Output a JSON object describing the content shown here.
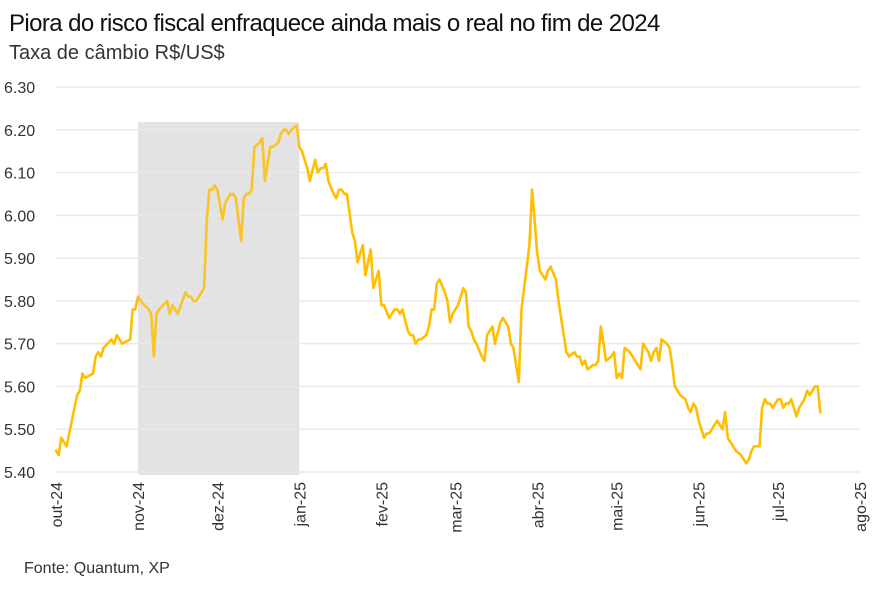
{
  "title": "Piora do risco fiscal enfraquece ainda mais o real no fim de 2024",
  "subtitle": "Taxa de câmbio R$/US$",
  "source": "Fonte: Quantum, XP",
  "chart_data": {
    "type": "line",
    "title": "Piora do risco fiscal enfraquece ainda mais o real no fim de 2024",
    "subtitle": "Taxa de câmbio R$/US$",
    "xlabel": "",
    "ylabel": "",
    "ylim": [
      5.4,
      6.3
    ],
    "yticks": [
      "6.30",
      "6.20",
      "6.10",
      "6.00",
      "5.90",
      "5.80",
      "5.70",
      "5.60",
      "5.50",
      "5.40"
    ],
    "ytick_values": [
      6.3,
      6.2,
      6.1,
      6.0,
      5.9,
      5.8,
      5.7,
      5.6,
      5.5,
      5.4
    ],
    "xticks": [
      "out-24",
      "nov-24",
      "dez-24",
      "jan-25",
      "fev-25",
      "mar-25",
      "abr-25",
      "mai-25",
      "jun-25",
      "jul-25",
      "ago-25"
    ],
    "xlim_days": [
      0,
      304
    ],
    "xtick_days": [
      0,
      31,
      61,
      92,
      123,
      151,
      182,
      212,
      243,
      273,
      304
    ],
    "grid": true,
    "legend": "none",
    "line_color": "#FFBE00",
    "highlight": {
      "start_day": 31,
      "end_day": 92,
      "color": "#E3E3E3",
      "label": ""
    },
    "series": [
      {
        "name": "R$/US$",
        "x_days": [
          0,
          1,
          2,
          3,
          4,
          7,
          8,
          9,
          10,
          11,
          14,
          15,
          16,
          17,
          18,
          21,
          22,
          23,
          24,
          25,
          28,
          29,
          30,
          31,
          32,
          35,
          36,
          37,
          38,
          39,
          42,
          43,
          44,
          45,
          46,
          49,
          50,
          51,
          52,
          53,
          56,
          57,
          58,
          59,
          60,
          61,
          63,
          64,
          65,
          66,
          67,
          68,
          70,
          71,
          72,
          73,
          74,
          75,
          77,
          78,
          79,
          80,
          81,
          82,
          84,
          85,
          86,
          87,
          88,
          89,
          91,
          92,
          93,
          94,
          95,
          96,
          98,
          99,
          100,
          101,
          102,
          103,
          105,
          106,
          107,
          108,
          109,
          110,
          112,
          113,
          114,
          115,
          116,
          117,
          119,
          120,
          121,
          122,
          123,
          124,
          126,
          127,
          128,
          129,
          130,
          131,
          133,
          134,
          135,
          136,
          137,
          138,
          140,
          141,
          142,
          143,
          144,
          145,
          147,
          148,
          149,
          150,
          151,
          152,
          154,
          155,
          156,
          157,
          158,
          159,
          161,
          162,
          163,
          164,
          165,
          166,
          168,
          169,
          170,
          171,
          172,
          173,
          175,
          176,
          177,
          178,
          179,
          180,
          182,
          183,
          184,
          185,
          186,
          187,
          189,
          190,
          191,
          192,
          193,
          194,
          196,
          197,
          198,
          199,
          200,
          201,
          203,
          204,
          205,
          206,
          207,
          208,
          210,
          211,
          212,
          213,
          214,
          215,
          217,
          218,
          219,
          220,
          221,
          222,
          224,
          225,
          226,
          227,
          228,
          229,
          231,
          232,
          233,
          234,
          235,
          236,
          238,
          239,
          240,
          241,
          242,
          243,
          245,
          246,
          247,
          248,
          249,
          250,
          252,
          253,
          254,
          255,
          256,
          257,
          259,
          260,
          261,
          262,
          263,
          264,
          266,
          267,
          268,
          269,
          270,
          271,
          273,
          274,
          275,
          276,
          277,
          278,
          280,
          281,
          282,
          283,
          284,
          285,
          287,
          288,
          289,
          290,
          291,
          292,
          294,
          295,
          296,
          297,
          298,
          299,
          301,
          302,
          303,
          304
        ],
        "values": [
          5.45,
          5.44,
          5.48,
          5.47,
          5.46,
          5.55,
          5.58,
          5.59,
          5.63,
          5.62,
          5.63,
          5.67,
          5.68,
          5.67,
          5.69,
          5.71,
          5.7,
          5.72,
          5.71,
          5.7,
          5.71,
          5.78,
          5.78,
          5.81,
          5.8,
          5.78,
          5.77,
          5.67,
          5.77,
          5.78,
          5.8,
          5.77,
          5.79,
          5.78,
          5.77,
          5.82,
          5.81,
          5.81,
          5.8,
          5.8,
          5.83,
          5.99,
          6.06,
          6.06,
          6.07,
          6.06,
          5.99,
          6.03,
          6.04,
          6.05,
          6.05,
          6.04,
          5.94,
          6.04,
          6.05,
          6.05,
          6.06,
          6.16,
          6.17,
          6.18,
          6.08,
          6.12,
          6.16,
          6.16,
          6.17,
          6.19,
          6.2,
          6.2,
          6.19,
          6.2,
          6.21,
          6.16,
          6.15,
          6.13,
          6.11,
          6.08,
          6.13,
          6.1,
          6.11,
          6.11,
          6.12,
          6.08,
          6.05,
          6.04,
          6.06,
          6.06,
          6.05,
          6.05,
          5.96,
          5.94,
          5.89,
          5.91,
          5.93,
          5.86,
          5.92,
          5.83,
          5.85,
          5.87,
          5.79,
          5.79,
          5.76,
          5.77,
          5.78,
          5.78,
          5.77,
          5.78,
          5.73,
          5.72,
          5.72,
          5.7,
          5.71,
          5.71,
          5.72,
          5.74,
          5.78,
          5.78,
          5.84,
          5.85,
          5.82,
          5.8,
          5.75,
          5.77,
          5.78,
          5.79,
          5.83,
          5.82,
          5.74,
          5.73,
          5.71,
          5.7,
          5.67,
          5.66,
          5.72,
          5.73,
          5.74,
          5.7,
          5.75,
          5.76,
          5.75,
          5.74,
          5.7,
          5.69,
          5.61,
          5.78,
          5.83,
          5.88,
          5.93,
          6.06,
          5.91,
          5.87,
          5.86,
          5.85,
          5.87,
          5.88,
          5.85,
          5.8,
          5.76,
          5.72,
          5.68,
          5.67,
          5.68,
          5.67,
          5.67,
          5.65,
          5.66,
          5.64,
          5.65,
          5.65,
          5.66,
          5.74,
          5.7,
          5.66,
          5.67,
          5.68,
          5.62,
          5.63,
          5.62,
          5.69,
          5.68,
          5.67,
          5.66,
          5.65,
          5.64,
          5.7,
          5.68,
          5.66,
          5.68,
          5.69,
          5.66,
          5.71,
          5.7,
          5.69,
          5.65,
          5.6,
          5.59,
          5.58,
          5.57,
          5.55,
          5.54,
          5.56,
          5.55,
          5.52,
          5.48,
          5.49,
          5.49,
          5.5,
          5.51,
          5.52,
          5.5,
          5.54,
          5.48,
          5.47,
          5.46,
          5.45,
          5.44,
          5.43,
          5.42,
          5.43,
          5.45,
          5.46,
          5.46,
          5.55,
          5.57,
          5.56,
          5.56,
          5.55,
          5.57,
          5.57,
          5.55,
          5.56,
          5.56,
          5.57,
          5.53,
          5.55,
          5.56,
          5.57,
          5.59,
          5.58,
          5.6,
          5.6,
          5.54
        ]
      }
    ]
  }
}
